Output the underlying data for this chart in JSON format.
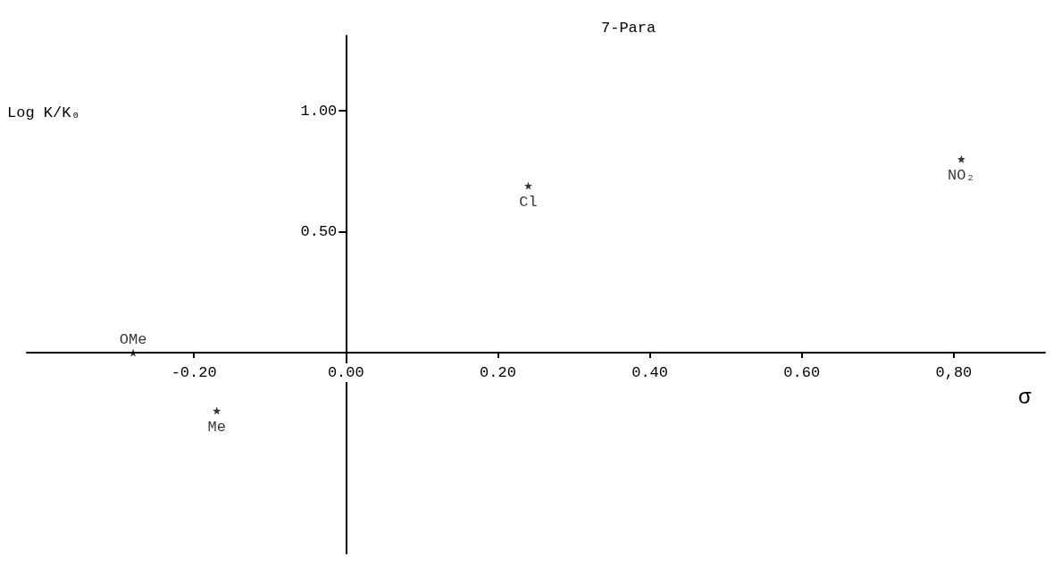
{
  "chart_data": {
    "type": "scatter",
    "title": "7-Para",
    "xlabel": "σ",
    "ylabel": "Log K/K₀",
    "x": [
      -0.28,
      -0.17,
      0.24,
      0.81
    ],
    "values": [
      0,
      -0.24,
      0.69,
      0.8
    ],
    "color": "#000000",
    "marker": "star",
    "grid": false,
    "xlim": [
      -0.42,
      0.92
    ],
    "ylim": [
      -0.83,
      1.31
    ],
    "xticks": [
      {
        "value": -0.2,
        "label": "-0.20"
      },
      {
        "value": 0,
        "label": "0.00"
      },
      {
        "value": 0.2,
        "label": "0.20"
      },
      {
        "value": 0.4,
        "label": "0.40"
      },
      {
        "value": 0.6,
        "label": "0.60"
      },
      {
        "value": 0.8,
        "label": "0,80"
      }
    ],
    "yticks": [
      {
        "value": 0.5,
        "label": "0.50"
      },
      {
        "value": 1,
        "label": "1.00"
      }
    ],
    "annotations": [
      {
        "text": "OMe",
        "x": -0.28,
        "y": 0
      },
      {
        "text": "Me",
        "x": -0.17,
        "y": -0.24
      },
      {
        "text": "Cl",
        "x": 0.24,
        "y": 0.69
      },
      {
        "text": "NO₂",
        "x": 0.81,
        "y": 0.8
      }
    ]
  }
}
